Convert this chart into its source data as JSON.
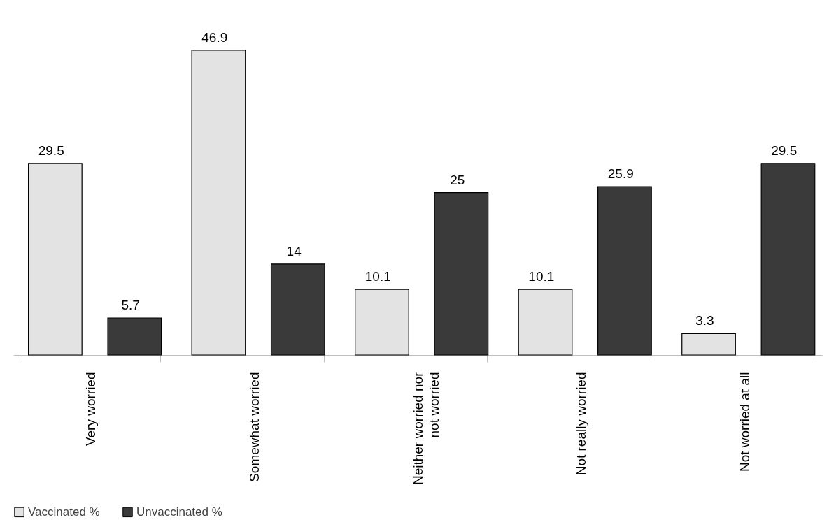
{
  "chart_data": {
    "type": "bar",
    "categories": [
      "Very worried",
      "Somewhat worried",
      "Neither worried nor not worried",
      "Not really worried",
      "Not worried at all"
    ],
    "series": [
      {
        "name": "Vaccinated %",
        "color": "#e3e3e3",
        "values": [
          29.5,
          46.9,
          10.1,
          10.1,
          3.3
        ]
      },
      {
        "name": "Unvaccinated %",
        "color": "#3a3a3a",
        "values": [
          5.7,
          14,
          25,
          25.9,
          29.5
        ]
      }
    ],
    "data_labels": true,
    "legend": "bottom",
    "grid": false
  }
}
